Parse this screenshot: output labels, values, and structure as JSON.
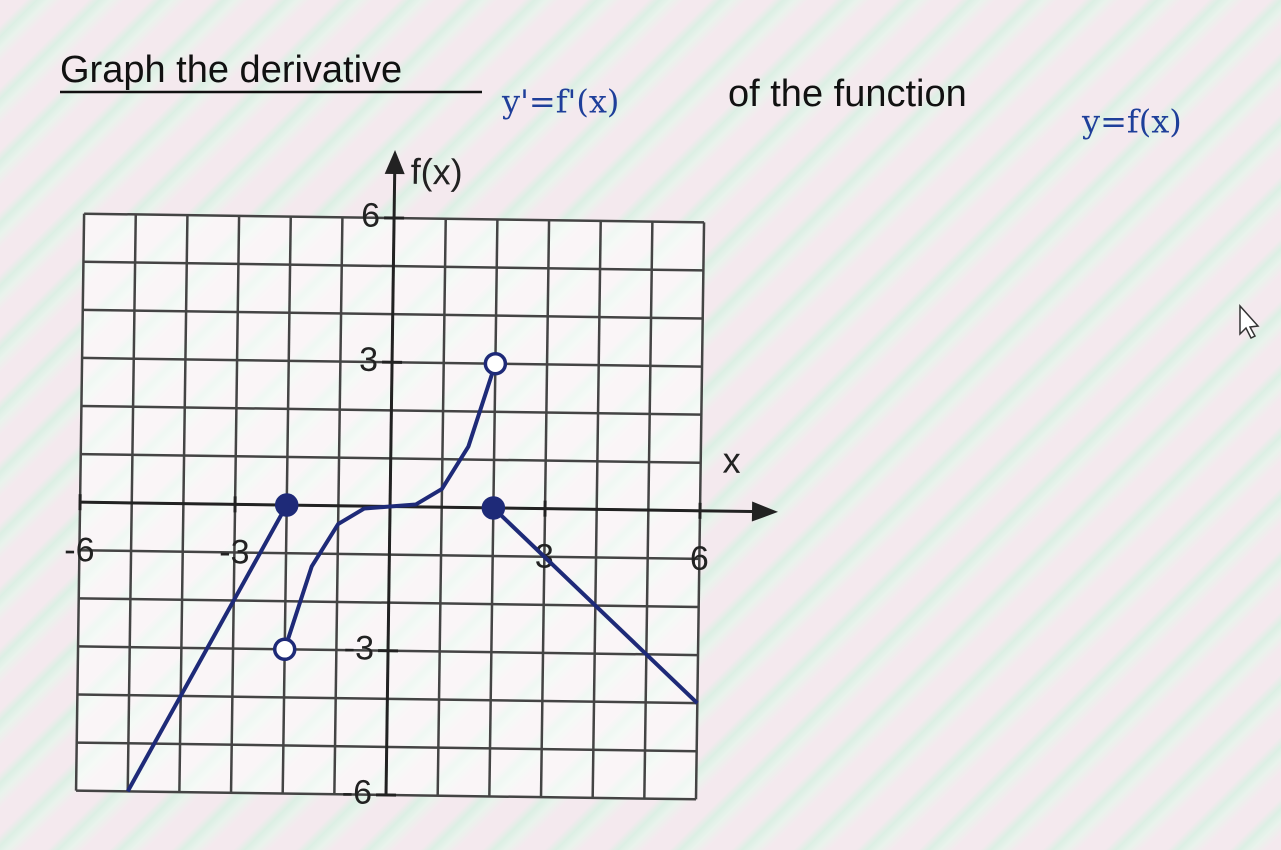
{
  "chart_data": {
    "type": "line",
    "title": "Graph the derivative",
    "derivative_label": "y'=f'(x)",
    "title_middle": "of the function",
    "function_label": "y=f(x)",
    "ylabel": "f(x)",
    "xlabel": "x",
    "xlim": [
      -6,
      6
    ],
    "ylim": [
      -6,
      6
    ],
    "xticks": [
      -6,
      -3,
      3,
      6
    ],
    "yticks": [
      -6,
      -3,
      3,
      6
    ],
    "grid": true,
    "series": [
      {
        "color": "#1e2a78",
        "x": [
          -5,
          -2
        ],
        "values": [
          -6,
          0
        ],
        "start_marker": null,
        "end_marker": "filled"
      },
      {
        "color": "#1e2a78",
        "x": [
          -2,
          -1.5,
          -1,
          -0.5,
          0,
          0.5,
          1,
          1.5,
          2
        ],
        "values": [
          -3,
          -1.27,
          -0.38,
          -0.05,
          0,
          0.05,
          0.38,
          1.27,
          3
        ],
        "start_marker": "open",
        "end_marker": "open"
      },
      {
        "color": "#1e2a78",
        "x": [
          2,
          6
        ],
        "values": [
          0,
          -4
        ],
        "start_marker": "filled",
        "end_marker": null
      }
    ]
  }
}
